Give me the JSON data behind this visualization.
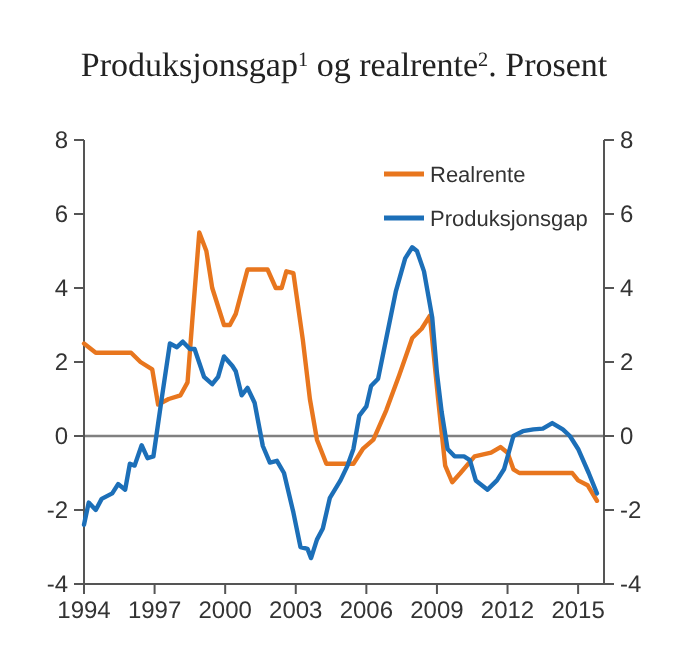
{
  "chart_data": {
    "type": "line",
    "title": "Produksjonsgap$^{1}$ og realrente$^{2}$. Prosent",
    "xlim": [
      1994,
      2016.1
    ],
    "xticks": [
      1994,
      1997,
      2000,
      2003,
      2006,
      2009,
      2012,
      2015
    ],
    "ylim": [
      -4,
      8
    ],
    "yticks": [
      -4,
      -2,
      0,
      2,
      4,
      6,
      8
    ],
    "y2lim": [
      -4,
      8
    ],
    "y2ticks": [
      -4,
      -2,
      0,
      2,
      4,
      6,
      8
    ],
    "legend": "top right",
    "grid": false,
    "line_style": "solid",
    "marker": "none",
    "ref_lines": [
      {
        "axis": "y",
        "value": 0,
        "color": "#808080"
      }
    ],
    "series": [
      {
        "name": "Realrente",
        "color": "#e8761e",
        "x": [
          1994,
          1994.5,
          1996,
          1996.4,
          1996.9,
          1997.15,
          1997.6,
          1998.1,
          1998.4,
          1998.6,
          1998.9,
          1999.2,
          1999.45,
          1999.95,
          2000.2,
          2000.45,
          2000.95,
          2001.8,
          2002.15,
          2002.4,
          2002.6,
          2002.9,
          2003.3,
          2003.6,
          2003.9,
          2004.3,
          2005.45,
          2005.85,
          2006.3,
          2006.85,
          2007.4,
          2007.95,
          2008.35,
          2008.7,
          2009.05,
          2009.35,
          2009.65,
          2010,
          2010.6,
          2011.3,
          2011.7,
          2012,
          2012.25,
          2012.5,
          2014.75,
          2015,
          2015.4,
          2015.8
        ],
        "values": [
          2.5,
          2.25,
          2.25,
          2,
          1.8,
          0.85,
          1,
          1.1,
          1.45,
          3.1,
          5.5,
          5,
          4,
          3,
          3,
          3.3,
          4.5,
          4.5,
          4,
          4,
          4.45,
          4.4,
          2.6,
          1,
          -0.1,
          -0.75,
          -0.75,
          -0.35,
          -0.1,
          0.7,
          1.65,
          2.65,
          2.9,
          3.25,
          1,
          -0.8,
          -1.25,
          -1,
          -0.55,
          -0.45,
          -0.3,
          -0.45,
          -0.9,
          -1,
          -1,
          -1.2,
          -1.33,
          -1.75
        ]
      },
      {
        "name": "Produksjonsgap",
        "color": "#1c6fb8",
        "x": [
          1994,
          1994.2,
          1994.5,
          1994.75,
          1995.2,
          1995.45,
          1995.75,
          1995.95,
          1996.15,
          1996.45,
          1996.7,
          1996.95,
          1997.3,
          1997.65,
          1997.95,
          1998.2,
          1998.5,
          1998.7,
          1999.1,
          1999.45,
          1999.7,
          1999.95,
          2000.3,
          2000.45,
          2000.7,
          2000.95,
          2001.25,
          2001.6,
          2001.9,
          2002.2,
          2002.5,
          2002.9,
          2003.2,
          2003.5,
          2003.65,
          2003.9,
          2004.15,
          2004.45,
          2004.9,
          2005.2,
          2005.45,
          2005.7,
          2006,
          2006.2,
          2006.5,
          2006.85,
          2007.25,
          2007.65,
          2007.95,
          2008.15,
          2008.45,
          2008.8,
          2009,
          2009.2,
          2009.45,
          2009.75,
          2010.15,
          2010.4,
          2010.65,
          2011.15,
          2011.55,
          2011.85,
          2012.25,
          2012.65,
          2013.1,
          2013.5,
          2013.9,
          2014.35,
          2014.65,
          2015,
          2015.45,
          2015.8
        ],
        "values": [
          -2.4,
          -1.8,
          -2,
          -1.7,
          -1.55,
          -1.3,
          -1.45,
          -0.75,
          -0.8,
          -0.25,
          -0.6,
          -0.55,
          1,
          2.5,
          2.4,
          2.55,
          2.35,
          2.35,
          1.6,
          1.4,
          1.6,
          2.15,
          1.9,
          1.75,
          1.1,
          1.3,
          0.9,
          -0.27,
          -0.72,
          -0.67,
          -1,
          -2.07,
          -3,
          -3.05,
          -3.3,
          -2.8,
          -2.5,
          -1.67,
          -1.2,
          -0.8,
          -0.35,
          0.55,
          0.8,
          1.35,
          1.55,
          2.65,
          3.9,
          4.8,
          5.1,
          5,
          4.45,
          3.2,
          1.7,
          0.65,
          -0.35,
          -0.55,
          -0.55,
          -0.65,
          -1.2,
          -1.45,
          -1.2,
          -0.9,
          0,
          0.13,
          0.18,
          0.2,
          0.35,
          0.18,
          0,
          -0.35,
          -1,
          -1.55
        ]
      }
    ]
  }
}
